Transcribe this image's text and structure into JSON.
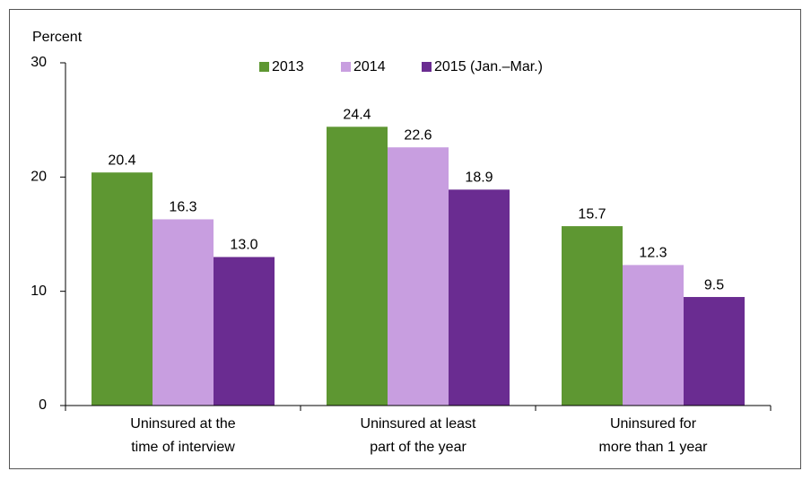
{
  "chart_data": {
    "type": "bar",
    "y_label": "Percent",
    "categories": [
      [
        "Uninsured at the",
        "time of interview"
      ],
      [
        "Uninsured at least",
        "part of the year"
      ],
      [
        "Uninsured for",
        "more than 1 year"
      ]
    ],
    "series": [
      {
        "name": "2013",
        "color": "#5e9732",
        "values": [
          20.4,
          24.4,
          15.7
        ],
        "value_labels": [
          "20.4",
          "24.4",
          "15.7"
        ]
      },
      {
        "name": "2014",
        "color": "#c89ee0",
        "values": [
          16.3,
          22.6,
          12.3
        ],
        "value_labels": [
          "16.3",
          "22.6",
          "12.3"
        ]
      },
      {
        "name": "2015 (Jan.–Mar.)",
        "color": "#6a2c91",
        "values": [
          13.0,
          18.9,
          9.5
        ],
        "value_labels": [
          "13.0",
          "18.9",
          "9.5"
        ]
      }
    ],
    "ylim": [
      0,
      30
    ],
    "yticks": [
      0,
      10,
      20,
      30
    ],
    "legend": "top"
  }
}
